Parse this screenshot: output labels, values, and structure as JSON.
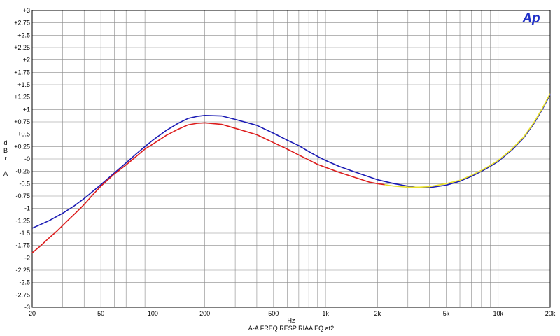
{
  "logo": "Ap",
  "chart_data": {
    "type": "line",
    "title": "",
    "xlabel": "Hz",
    "ylabel": [
      "d",
      "B",
      "r",
      "",
      "A"
    ],
    "caption": "A-A FREQ RESP RIAA EQ.at2",
    "x_scale": "log",
    "xlim": [
      20,
      20000
    ],
    "ylim": [
      -3,
      3
    ],
    "grid": true,
    "x_ticks": [
      {
        "value": 20,
        "label": "20"
      },
      {
        "value": 50,
        "label": "50"
      },
      {
        "value": 100,
        "label": "100"
      },
      {
        "value": 200,
        "label": "200"
      },
      {
        "value": 500,
        "label": "500"
      },
      {
        "value": 1000,
        "label": "1k"
      },
      {
        "value": 2000,
        "label": "2k"
      },
      {
        "value": 5000,
        "label": "5k"
      },
      {
        "value": 10000,
        "label": "10k"
      },
      {
        "value": 20000,
        "label": "20k"
      }
    ],
    "y_ticks": [
      {
        "value": 3,
        "label": "+3"
      },
      {
        "value": 2.75,
        "label": "+2.75"
      },
      {
        "value": 2.5,
        "label": "+2.5"
      },
      {
        "value": 2.25,
        "label": "+2.25"
      },
      {
        "value": 2,
        "label": "+2"
      },
      {
        "value": 1.75,
        "label": "+1.75"
      },
      {
        "value": 1.5,
        "label": "+1.5"
      },
      {
        "value": 1.25,
        "label": "+1.25"
      },
      {
        "value": 1,
        "label": "+1"
      },
      {
        "value": 0.75,
        "label": "+0.75"
      },
      {
        "value": 0.5,
        "label": "+0.5"
      },
      {
        "value": 0.25,
        "label": "+0.25"
      },
      {
        "value": 0,
        "label": "-0"
      },
      {
        "value": -0.25,
        "label": "-0.25"
      },
      {
        "value": -0.5,
        "label": "-0.5"
      },
      {
        "value": -0.75,
        "label": "-0.75"
      },
      {
        "value": -1,
        "label": "-1"
      },
      {
        "value": -1.25,
        "label": "-1.25"
      },
      {
        "value": -1.5,
        "label": "-1.5"
      },
      {
        "value": -1.75,
        "label": "-1.75"
      },
      {
        "value": -2,
        "label": "-2"
      },
      {
        "value": -2.25,
        "label": "-2.25"
      },
      {
        "value": -2.5,
        "label": "-2.5"
      },
      {
        "value": -2.75,
        "label": "-2.75"
      },
      {
        "value": -3,
        "label": "-3"
      }
    ],
    "series": [
      {
        "color": "#1a1ab4",
        "points": [
          [
            20,
            -1.4
          ],
          [
            25,
            -1.25
          ],
          [
            30,
            -1.1
          ],
          [
            35,
            -0.95
          ],
          [
            40,
            -0.8
          ],
          [
            50,
            -0.52
          ],
          [
            60,
            -0.28
          ],
          [
            70,
            -0.08
          ],
          [
            80,
            0.1
          ],
          [
            90,
            0.25
          ],
          [
            100,
            0.38
          ],
          [
            120,
            0.58
          ],
          [
            140,
            0.72
          ],
          [
            160,
            0.82
          ],
          [
            180,
            0.86
          ],
          [
            200,
            0.88
          ],
          [
            250,
            0.87
          ],
          [
            300,
            0.8
          ],
          [
            400,
            0.68
          ],
          [
            500,
            0.52
          ],
          [
            600,
            0.38
          ],
          [
            700,
            0.27
          ],
          [
            800,
            0.15
          ],
          [
            900,
            0.05
          ],
          [
            1000,
            -0.03
          ],
          [
            1200,
            -0.15
          ],
          [
            1500,
            -0.27
          ],
          [
            2000,
            -0.42
          ],
          [
            2500,
            -0.5
          ],
          [
            3000,
            -0.55
          ],
          [
            3500,
            -0.58
          ],
          [
            4000,
            -0.58
          ],
          [
            5000,
            -0.53
          ],
          [
            6000,
            -0.45
          ],
          [
            7000,
            -0.35
          ],
          [
            8000,
            -0.25
          ],
          [
            9000,
            -0.15
          ],
          [
            10000,
            -0.05
          ],
          [
            12000,
            0.18
          ],
          [
            14000,
            0.42
          ],
          [
            16000,
            0.7
          ],
          [
            18000,
            1.0
          ],
          [
            20000,
            1.3
          ]
        ]
      },
      {
        "color": "#dd1c1c",
        "points": [
          [
            20,
            -1.9
          ],
          [
            22,
            -1.78
          ],
          [
            25,
            -1.6
          ],
          [
            28,
            -1.45
          ],
          [
            32,
            -1.25
          ],
          [
            36,
            -1.08
          ],
          [
            40,
            -0.92
          ],
          [
            45,
            -0.72
          ],
          [
            50,
            -0.55
          ],
          [
            60,
            -0.3
          ],
          [
            70,
            -0.12
          ],
          [
            80,
            0.05
          ],
          [
            90,
            0.2
          ],
          [
            100,
            0.3
          ],
          [
            120,
            0.48
          ],
          [
            140,
            0.6
          ],
          [
            160,
            0.69
          ],
          [
            180,
            0.72
          ],
          [
            200,
            0.73
          ],
          [
            250,
            0.7
          ],
          [
            300,
            0.62
          ],
          [
            400,
            0.49
          ],
          [
            500,
            0.33
          ],
          [
            600,
            0.2
          ],
          [
            700,
            0.08
          ],
          [
            800,
            -0.02
          ],
          [
            900,
            -0.11
          ],
          [
            1000,
            -0.17
          ],
          [
            1200,
            -0.27
          ],
          [
            1500,
            -0.38
          ],
          [
            1800,
            -0.47
          ],
          [
            2000,
            -0.5
          ],
          [
            2200,
            -0.52
          ]
        ]
      },
      {
        "color": "#e8e02a",
        "points": [
          [
            2200,
            -0.52
          ],
          [
            2500,
            -0.55
          ],
          [
            3000,
            -0.57
          ],
          [
            3500,
            -0.57
          ],
          [
            4000,
            -0.56
          ],
          [
            5000,
            -0.5
          ],
          [
            6000,
            -0.43
          ],
          [
            7000,
            -0.33
          ],
          [
            8000,
            -0.23
          ],
          [
            9000,
            -0.13
          ],
          [
            10000,
            -0.03
          ],
          [
            12000,
            0.2
          ],
          [
            14000,
            0.44
          ],
          [
            16000,
            0.72
          ],
          [
            18000,
            1.02
          ],
          [
            20000,
            1.32
          ]
        ]
      }
    ]
  }
}
